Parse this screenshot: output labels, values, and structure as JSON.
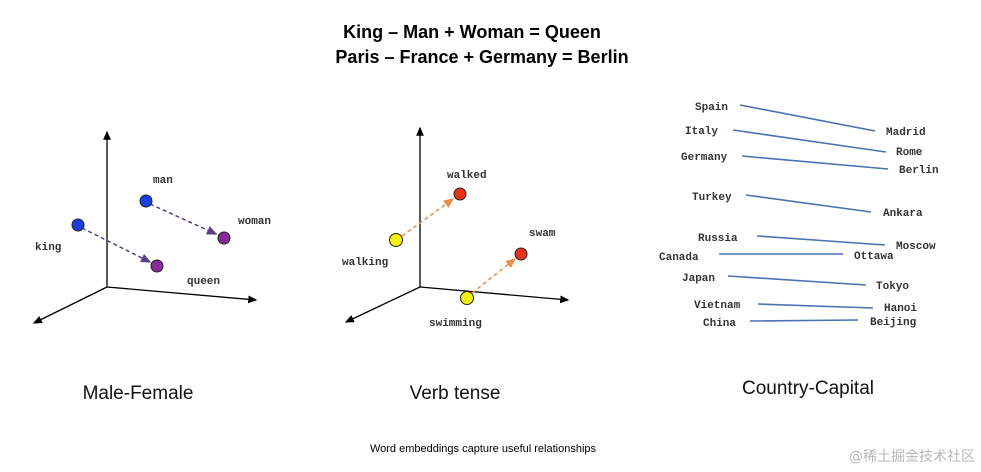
{
  "titles": [
    "King – Man + Woman = Queen",
    "Paris – France + Germany = Berlin"
  ],
  "panels": {
    "male_female": {
      "caption": "Male-Female",
      "words": {
        "king": "king",
        "man": "man",
        "woman": "woman",
        "queen": "queen"
      }
    },
    "verb_tense": {
      "caption": "Verb tense",
      "words": {
        "walking": "walking",
        "walked": "walked",
        "swimming": "swimming",
        "swam": "swam"
      }
    },
    "country_capital": {
      "caption": "Country-Capital",
      "pairs": [
        {
          "country": "Spain",
          "capital": "Madrid"
        },
        {
          "country": "Italy",
          "capital": "Rome"
        },
        {
          "country": "Germany",
          "capital": "Berlin"
        },
        {
          "country": "Turkey",
          "capital": "Ankara"
        },
        {
          "country": "Russia",
          "capital": "Moscow"
        },
        {
          "country": "Canada",
          "capital": "Ottawa"
        },
        {
          "country": "Japan",
          "capital": "Tokyo"
        },
        {
          "country": "Vietnam",
          "capital": "Hanoi"
        },
        {
          "country": "China",
          "capital": "Beijing"
        }
      ]
    }
  },
  "footer_caption": "Word embeddings capture useful relationships",
  "watermark": "@稀土掘金技术社区",
  "colors": {
    "male": "#1a3fe0",
    "female": "#8a2a9a",
    "present": "#f2f20a",
    "past": "#e8331a",
    "gender_arrow": "#5a3f8a",
    "tense_arrow": "#e8904a",
    "line": "#4a72b0"
  }
}
